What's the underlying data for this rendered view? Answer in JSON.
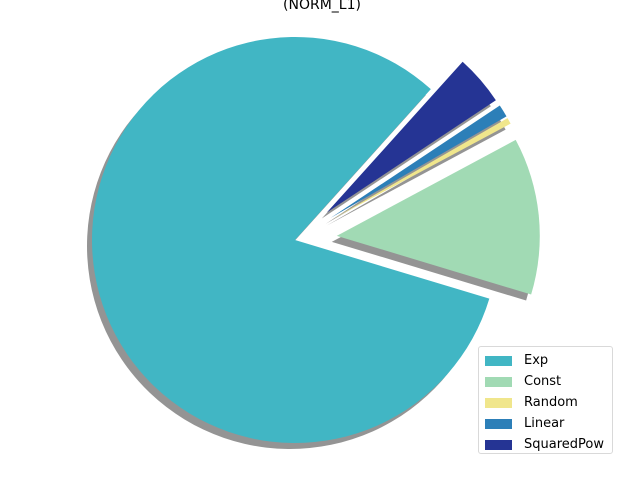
{
  "chart_data": {
    "type": "pie",
    "title": "(NORM_L1)",
    "labels": [
      "Exp",
      "Const",
      "Random",
      "Linear",
      "SquaredPow"
    ],
    "values": [
      82.0,
      12.5,
      0.5,
      1.0,
      4.0
    ],
    "unit": "percent",
    "colors": [
      "#41b6c4",
      "#a1dab4",
      "#f0e68c",
      "#2c7fb8",
      "#253494"
    ],
    "exploded": [
      false,
      true,
      true,
      true,
      true
    ],
    "shadow": true,
    "start_angle_deg": 48,
    "legend_position": "lower-right"
  }
}
